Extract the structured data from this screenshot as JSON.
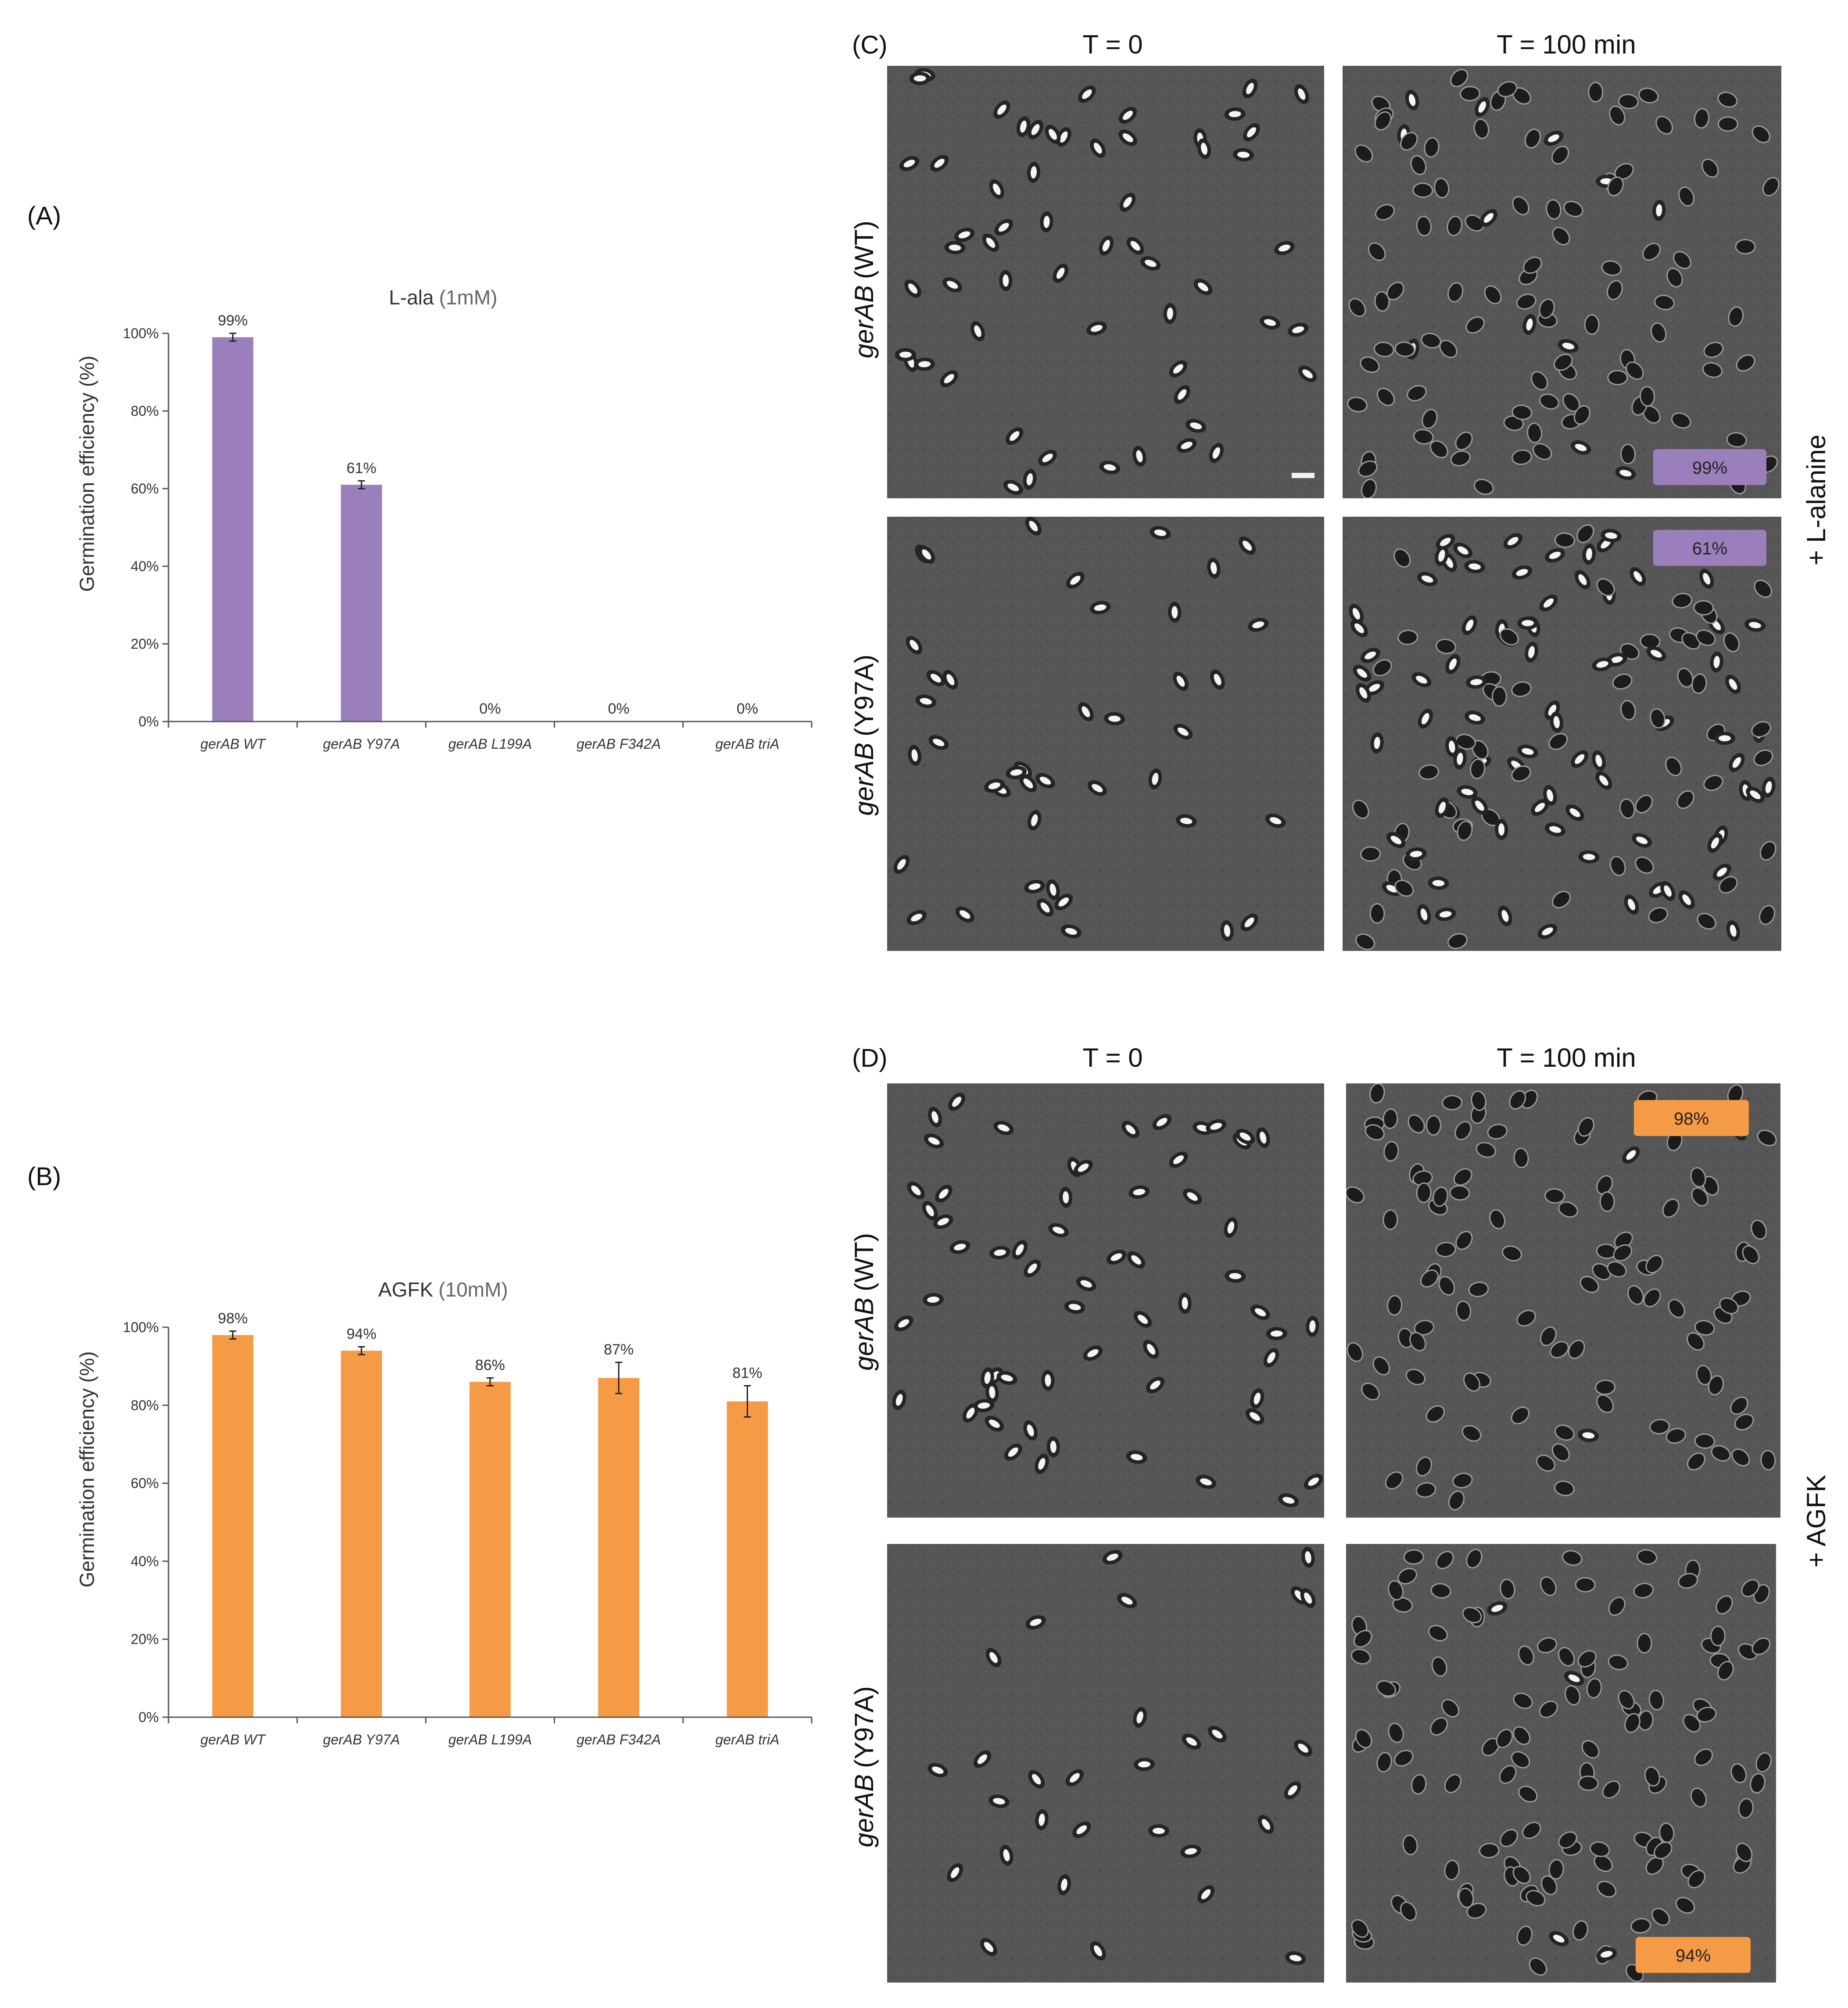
{
  "chart_data": [
    {
      "panel": "(A)",
      "type": "bar",
      "title_main": "L-ala",
      "title_conc": "(1mM)",
      "ylabel": "Germination efficiency (%)",
      "ylim": [
        0,
        100
      ],
      "yticks": [
        "0%",
        "20%",
        "40%",
        "60%",
        "80%",
        "100%"
      ],
      "categories": [
        "gerAB WT",
        "gerAB Y97A",
        "gerAB L199A",
        "gerAB F342A",
        "gerAB triA"
      ],
      "values": [
        99,
        61,
        0,
        0,
        0
      ],
      "errors": [
        1,
        1,
        0,
        0,
        0
      ],
      "data_labels": [
        "99%",
        "61%",
        "0%",
        "0%",
        "0%"
      ],
      "color": "#9b7fbd"
    },
    {
      "panel": "(B)",
      "type": "bar",
      "title_main": "AGFK",
      "title_conc": "(10mM)",
      "ylabel": "Germination efficiency (%)",
      "ylim": [
        0,
        100
      ],
      "yticks": [
        "0%",
        "20%",
        "40%",
        "60%",
        "80%",
        "100%"
      ],
      "categories": [
        "gerAB WT",
        "gerAB Y97A",
        "gerAB L199A",
        "gerAB F342A",
        "gerAB triA"
      ],
      "values": [
        98,
        94,
        86,
        87,
        81
      ],
      "errors": [
        1,
        1,
        1,
        4,
        4
      ],
      "data_labels": [
        "98%",
        "94%",
        "86%",
        "87%",
        "81%"
      ],
      "color": "#f59b45"
    }
  ],
  "micrographs": [
    {
      "panel": "(C)",
      "col_headers": [
        "T = 0",
        "T = 100 min"
      ],
      "row_labels": [
        {
          "gene": "gerAB",
          "variant": "(WT)"
        },
        {
          "gene": "gerAB",
          "variant": "(Y97A)"
        }
      ],
      "treatment": "+ L-alanine",
      "badges": [
        "99%",
        "61%"
      ],
      "badge_color": "#9b7fbd"
    },
    {
      "panel": "(D)",
      "col_headers": [
        "T = 0",
        "T = 100 min"
      ],
      "row_labels": [
        {
          "gene": "gerAB",
          "variant": "(WT)"
        },
        {
          "gene": "gerAB",
          "variant": "(Y97A)"
        }
      ],
      "treatment": "+ AGFK",
      "badges": [
        "98%",
        "94%"
      ],
      "badge_color": "#f59b45"
    }
  ]
}
